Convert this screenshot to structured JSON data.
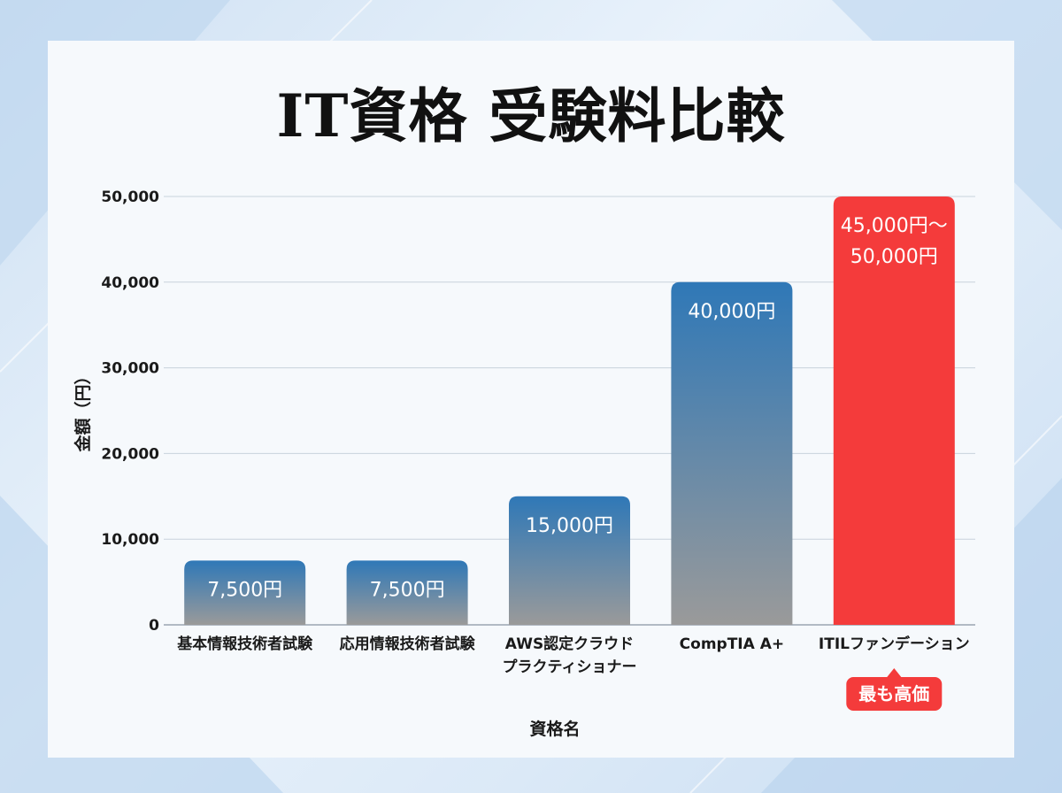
{
  "chart_data": {
    "type": "bar",
    "title": "IT資格 受験料比較",
    "xlabel": "資格名",
    "ylabel": "金額（円）",
    "ylim": [
      0,
      50000
    ],
    "yticks": [
      0,
      10000,
      20000,
      30000,
      40000,
      50000
    ],
    "ytick_labels": [
      "0",
      "10,000",
      "20,000",
      "30,000",
      "40,000",
      "50,000"
    ],
    "categories": [
      [
        "基本情報技術者試験"
      ],
      [
        "応用情報技術者試験"
      ],
      [
        "AWS認定クラウド",
        "プラクティショナー"
      ],
      [
        "CompTIA A+"
      ],
      [
        "ITILファンデーション"
      ]
    ],
    "values": [
      7500,
      7500,
      15000,
      40000,
      50000
    ],
    "data_labels": [
      [
        "7,500円"
      ],
      [
        "7,500円"
      ],
      [
        "15,000円"
      ],
      [
        "40,000円"
      ],
      [
        "45,000円～",
        "50,000円"
      ]
    ],
    "highlight_index": 4,
    "annotation": "最も高価",
    "grid": true,
    "colors": {
      "bar_top": "#2f78b7",
      "bar_bottom": "#9a9a9a",
      "highlight": "#f43b3b",
      "grid": "#c8d2dc"
    }
  }
}
